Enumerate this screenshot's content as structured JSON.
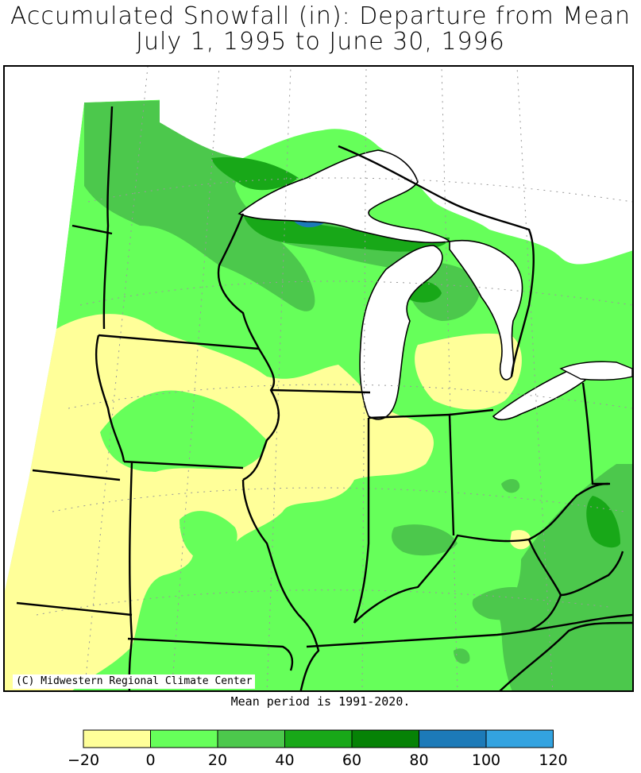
{
  "title_line1": "Accumulated Snowfall (in): Departure from Mean",
  "title_line2": "July 1, 1995 to June 30, 1996",
  "credit": "(C) Midwestern Regional Climate Center",
  "mean_period": "Mean period is 1991-2020.",
  "legend": {
    "bins": [
      {
        "min": -20,
        "max": 0,
        "color": "#ffff99"
      },
      {
        "min": 0,
        "max": 20,
        "color": "#66ff5a"
      },
      {
        "min": 20,
        "max": 40,
        "color": "#4cc84c"
      },
      {
        "min": 40,
        "max": 60,
        "color": "#18a818"
      },
      {
        "min": 60,
        "max": 80,
        "color": "#068206"
      },
      {
        "min": 80,
        "max": 100,
        "color": "#1c7ab8"
      },
      {
        "min": 100,
        "max": 120,
        "color": "#33a3e0"
      }
    ],
    "tick_labels": [
      "−20",
      "0",
      "20",
      "40",
      "60",
      "80",
      "100",
      "120"
    ]
  },
  "colors": {
    "lakes": "#ffffff",
    "borders": "#000000",
    "grid": "#999999"
  }
}
